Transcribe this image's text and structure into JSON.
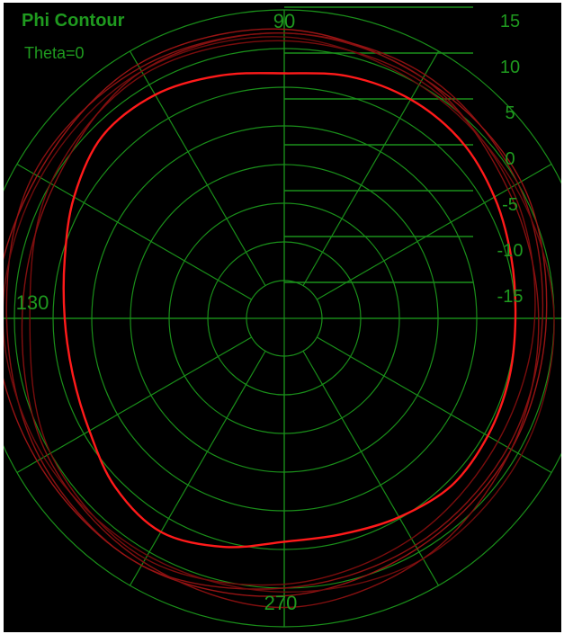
{
  "chart_data": {
    "type": "polar-line",
    "title": "Phi Contour",
    "subtitle": "Theta=0",
    "angle_labels": [
      "90",
      "130",
      "270"
    ],
    "radial_ticks": [
      "15",
      "10",
      "5",
      "0",
      "-5",
      "-10",
      "-15"
    ],
    "radial_range": [
      -20,
      15
    ],
    "grid": true,
    "grid_color": "#1a8f1a",
    "series": [
      {
        "highlight": true,
        "color": "#ff1a1a",
        "points": [
          {
            "angle": 0,
            "value": 5.0
          },
          {
            "angle": 15,
            "value": 5.5
          },
          {
            "angle": 30,
            "value": 6.5
          },
          {
            "angle": 45,
            "value": 7.5
          },
          {
            "angle": 60,
            "value": 7.8
          },
          {
            "angle": 75,
            "value": 7.5
          },
          {
            "angle": 90,
            "value": 6.8
          },
          {
            "angle": 105,
            "value": 7.6
          },
          {
            "angle": 120,
            "value": 8.5
          },
          {
            "angle": 135,
            "value": 8.4
          },
          {
            "angle": 150,
            "value": 6.5
          },
          {
            "angle": 165,
            "value": 4.5
          },
          {
            "angle": 180,
            "value": 3.5
          },
          {
            "angle": 195,
            "value": 3.4
          },
          {
            "angle": 210,
            "value": 4.2
          },
          {
            "angle": 225,
            "value": 6.0
          },
          {
            "angle": 240,
            "value": 7.0
          },
          {
            "angle": 255,
            "value": 5.7
          },
          {
            "angle": 270,
            "value": 4.0
          },
          {
            "angle": 285,
            "value": 4.0
          },
          {
            "angle": 300,
            "value": 4.8
          },
          {
            "angle": 315,
            "value": 5.7
          },
          {
            "angle": 330,
            "value": 5.5
          },
          {
            "angle": 345,
            "value": 5.2
          }
        ]
      },
      {
        "highlight": false,
        "color": "#8a1111",
        "points": [
          {
            "angle": 0,
            "value": 8.5
          },
          {
            "angle": 30,
            "value": 10.0
          },
          {
            "angle": 60,
            "value": 11.5
          },
          {
            "angle": 90,
            "value": 12.0
          },
          {
            "angle": 120,
            "value": 12.5
          },
          {
            "angle": 150,
            "value": 12.5
          },
          {
            "angle": 180,
            "value": 11.0
          },
          {
            "angle": 210,
            "value": 11.5
          },
          {
            "angle": 240,
            "value": 12.0
          },
          {
            "angle": 270,
            "value": 10.0
          },
          {
            "angle": 300,
            "value": 9.0
          },
          {
            "angle": 330,
            "value": 8.5
          }
        ]
      },
      {
        "highlight": false,
        "color": "#7a0d0d",
        "points": [
          {
            "angle": 0,
            "value": 7.5
          },
          {
            "angle": 30,
            "value": 9.0
          },
          {
            "angle": 60,
            "value": 10.5
          },
          {
            "angle": 90,
            "value": 11.0
          },
          {
            "angle": 120,
            "value": 11.5
          },
          {
            "angle": 150,
            "value": 10.0
          },
          {
            "angle": 180,
            "value": 8.0
          },
          {
            "angle": 210,
            "value": 10.0
          },
          {
            "angle": 240,
            "value": 11.0
          },
          {
            "angle": 270,
            "value": 9.5
          },
          {
            "angle": 300,
            "value": 8.0
          },
          {
            "angle": 330,
            "value": 7.0
          }
        ]
      },
      {
        "highlight": false,
        "color": "#991414",
        "points": [
          {
            "angle": 0,
            "value": 9.0
          },
          {
            "angle": 30,
            "value": 10.5
          },
          {
            "angle": 60,
            "value": 11.0
          },
          {
            "angle": 90,
            "value": 12.5
          },
          {
            "angle": 120,
            "value": 13.0
          },
          {
            "angle": 150,
            "value": 12.0
          },
          {
            "angle": 180,
            "value": 12.5
          },
          {
            "angle": 210,
            "value": 12.0
          },
          {
            "angle": 240,
            "value": 12.0
          },
          {
            "angle": 270,
            "value": 11.0
          },
          {
            "angle": 300,
            "value": 9.5
          },
          {
            "angle": 330,
            "value": 9.0
          }
        ]
      },
      {
        "highlight": false,
        "color": "#6e0c0c",
        "points": [
          {
            "angle": 0,
            "value": 10.0
          },
          {
            "angle": 30,
            "value": 9.5
          },
          {
            "angle": 60,
            "value": 10.0
          },
          {
            "angle": 90,
            "value": 11.5
          },
          {
            "angle": 120,
            "value": 12.0
          },
          {
            "angle": 150,
            "value": 11.5
          },
          {
            "angle": 180,
            "value": 11.5
          },
          {
            "angle": 210,
            "value": 11.0
          },
          {
            "angle": 240,
            "value": 10.5
          },
          {
            "angle": 270,
            "value": 10.5
          },
          {
            "angle": 300,
            "value": 11.0
          },
          {
            "angle": 330,
            "value": 10.5
          }
        ]
      },
      {
        "highlight": false,
        "color": "#851010",
        "points": [
          {
            "angle": 0,
            "value": 8.0
          },
          {
            "angle": 30,
            "value": 8.5
          },
          {
            "angle": 60,
            "value": 11.0
          },
          {
            "angle": 90,
            "value": 12.0
          },
          {
            "angle": 120,
            "value": 12.0
          },
          {
            "angle": 150,
            "value": 9.5
          },
          {
            "angle": 180,
            "value": 9.0
          },
          {
            "angle": 210,
            "value": 10.5
          },
          {
            "angle": 240,
            "value": 11.5
          },
          {
            "angle": 270,
            "value": 12.5
          },
          {
            "angle": 300,
            "value": 11.0
          },
          {
            "angle": 330,
            "value": 9.0
          }
        ]
      }
    ]
  }
}
